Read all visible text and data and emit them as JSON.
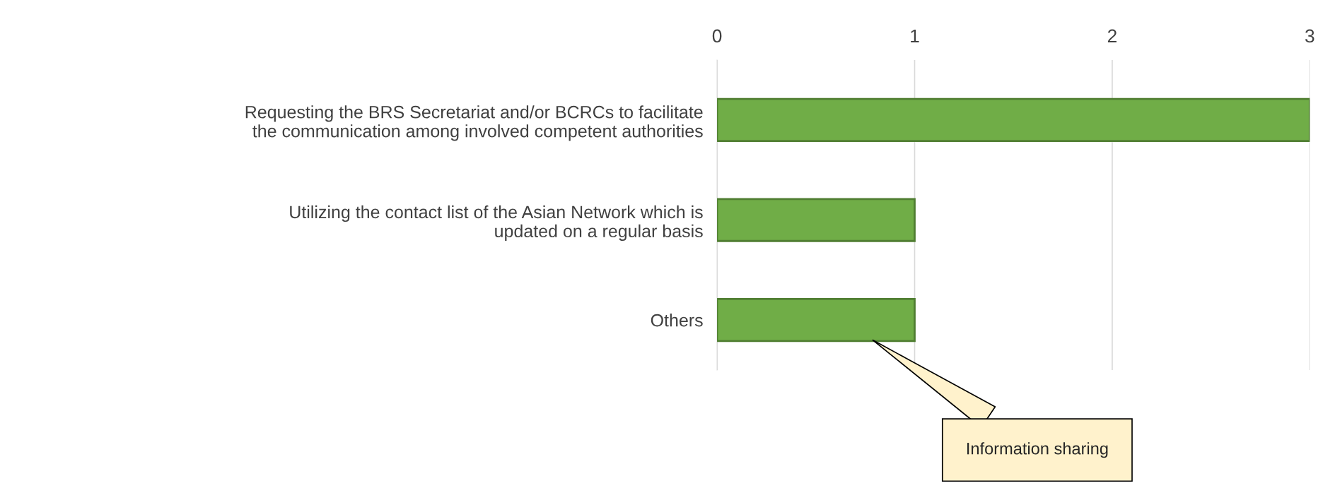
{
  "chart_data": {
    "type": "bar",
    "orientation": "horizontal",
    "categories": [
      "Requesting the BRS Secretariat and/or BCRCs to facilitate\nthe communication among involved competent authorities",
      "Utilizing the contact list of the Asian Network which is\nupdated on a regular basis",
      "Others"
    ],
    "values": [
      3,
      1,
      1
    ],
    "color": "#70ad47",
    "xlim": [
      0,
      3
    ],
    "xticks": [
      0,
      1,
      2,
      3
    ],
    "grid": "x",
    "annotations": [
      "Information sharing"
    ]
  }
}
